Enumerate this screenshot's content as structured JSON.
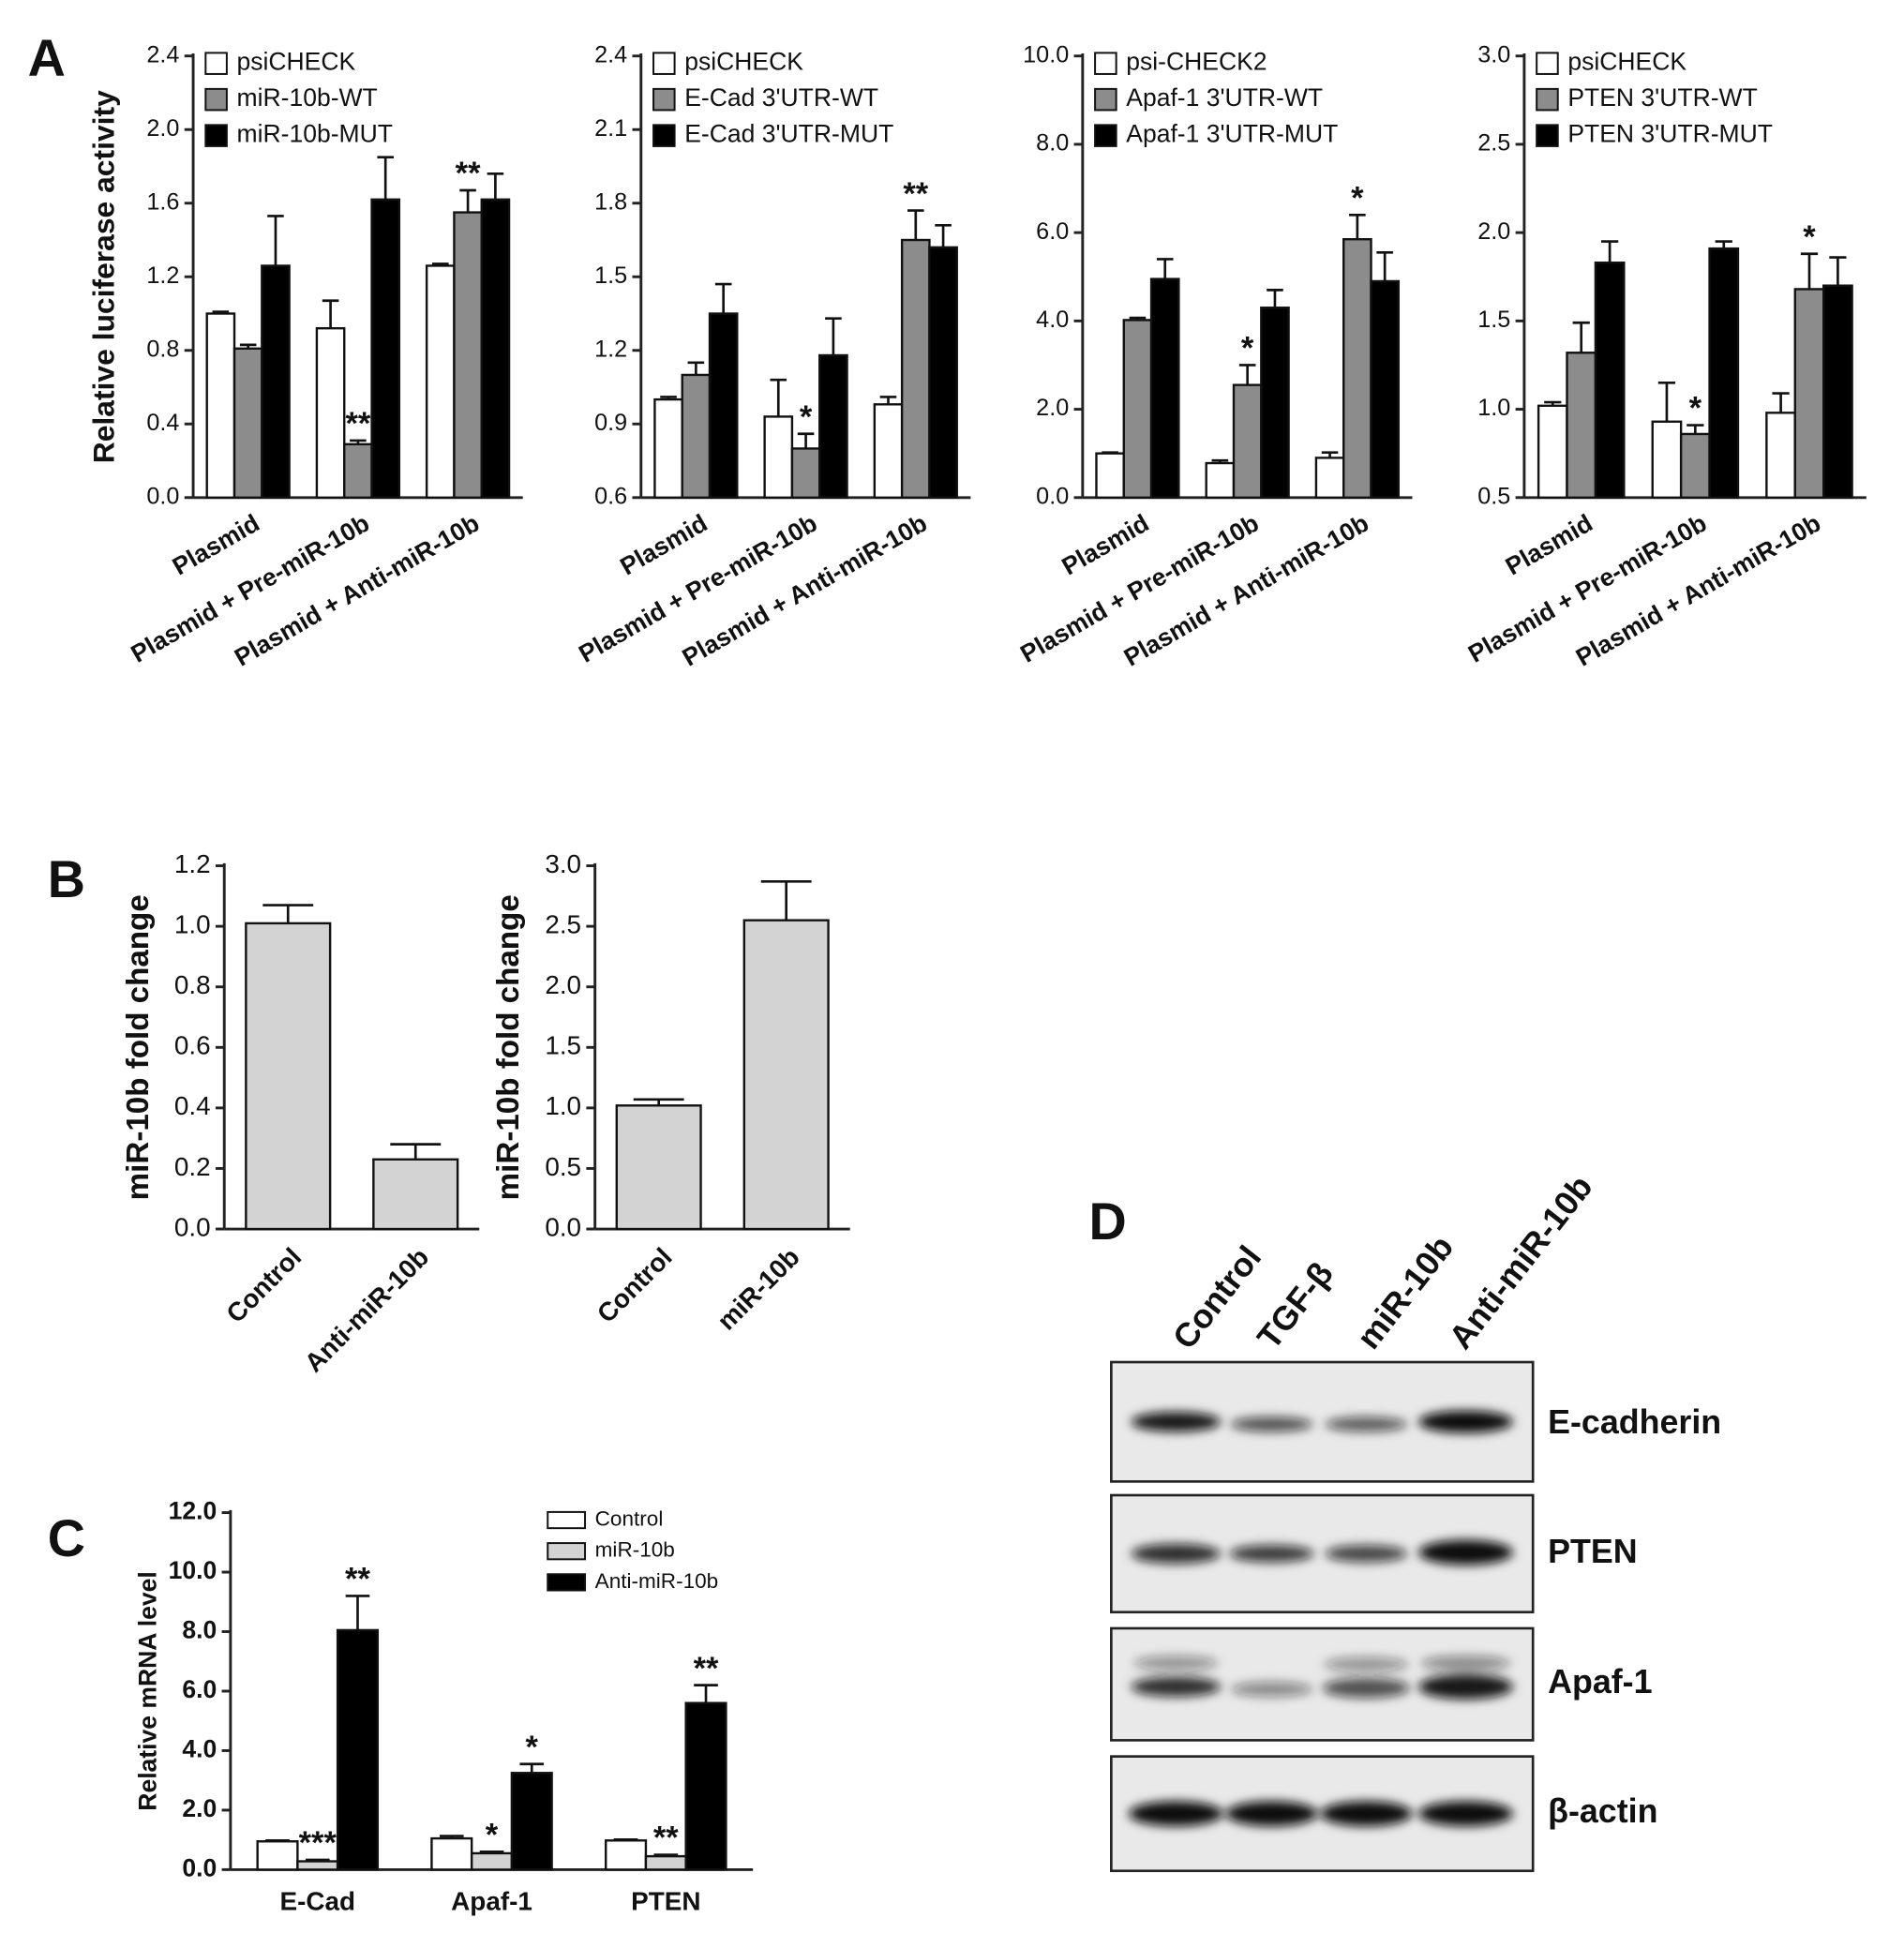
{
  "chart_data": [
    {
      "type": "bar",
      "panel_label": "A",
      "ylabel": "Relative luciferase activity",
      "categories": [
        "Plasmid",
        "Plasmid + Pre-miR-10b",
        "Plasmid + Anti-miR-10b"
      ],
      "series": [
        {
          "name": "psiCHECK",
          "color": "#ffffff",
          "values": [
            1.0,
            0.92,
            1.26
          ],
          "errors": [
            0.01,
            0.15,
            0.01
          ],
          "significance": [
            null,
            null,
            null
          ]
        },
        {
          "name": "miR-10b-WT",
          "color": "#8c8c8c",
          "values": [
            0.81,
            0.29,
            1.55
          ],
          "errors": [
            0.02,
            0.02,
            0.12
          ],
          "significance": [
            null,
            "**",
            "**"
          ]
        },
        {
          "name": "miR-10b-MUT",
          "color": "#000000",
          "values": [
            1.26,
            1.62,
            1.62
          ],
          "errors": [
            0.27,
            0.23,
            0.14
          ],
          "significance": [
            null,
            null,
            null
          ]
        }
      ],
      "ylim": [
        0,
        2.4
      ],
      "yticks": [
        {
          "value": 0,
          "label": "0.0"
        },
        0.4,
        0.8,
        1.2,
        1.6,
        {
          "value": 2,
          "label": "2.0"
        },
        2.4
      ],
      "legend": "upper left"
    },
    {
      "type": "bar",
      "categories": [
        "Plasmid",
        "Plasmid + Pre-miR-10b",
        "Plasmid + Anti-miR-10b"
      ],
      "series": [
        {
          "name": "psiCHECK",
          "color": "#ffffff",
          "values": [
            1.0,
            0.93,
            0.98
          ],
          "errors": [
            0.01,
            0.15,
            0.03
          ],
          "significance": [
            null,
            null,
            null
          ]
        },
        {
          "name": "E-Cad 3'UTR-WT",
          "color": "#8c8c8c",
          "values": [
            1.1,
            0.8,
            1.65
          ],
          "errors": [
            0.05,
            0.06,
            0.12
          ],
          "significance": [
            null,
            "*",
            "**"
          ]
        },
        {
          "name": "E-Cad 3'UTR-MUT",
          "color": "#000000",
          "values": [
            1.35,
            1.18,
            1.62
          ],
          "errors": [
            0.12,
            0.15,
            0.09
          ],
          "significance": [
            null,
            null,
            null
          ]
        }
      ],
      "ylim": [
        0.6,
        2.4
      ],
      "yticks": [
        0.6,
        0.9,
        1.2,
        1.5,
        1.8,
        2.1,
        2.4
      ],
      "legend": "upper left"
    },
    {
      "type": "bar",
      "categories": [
        "Plasmid",
        "Plasmid + Pre-miR-10b",
        "Plasmid + Anti-miR-10b"
      ],
      "series": [
        {
          "name": "psi-CHECK2",
          "color": "#ffffff",
          "values": [
            1.0,
            0.78,
            0.9
          ],
          "errors": [
            0.02,
            0.06,
            0.12
          ],
          "significance": [
            null,
            null,
            null
          ]
        },
        {
          "name": "Apaf-1 3'UTR-WT",
          "color": "#8c8c8c",
          "values": [
            4.02,
            2.55,
            5.85
          ],
          "errors": [
            0.05,
            0.45,
            0.55
          ],
          "significance": [
            null,
            "*",
            "*"
          ]
        },
        {
          "name": "Apaf-1 3'UTR-MUT",
          "color": "#000000",
          "values": [
            4.95,
            4.3,
            4.9
          ],
          "errors": [
            0.45,
            0.4,
            0.65
          ],
          "significance": [
            null,
            null,
            null
          ]
        }
      ],
      "ylim": [
        0,
        10
      ],
      "yticks": [
        {
          "value": 0,
          "label": "0.0"
        },
        {
          "value": 2,
          "label": "2.0"
        },
        {
          "value": 4,
          "label": "4.0"
        },
        {
          "value": 6,
          "label": "6.0"
        },
        {
          "value": 8,
          "label": "8.0"
        },
        {
          "value": 10,
          "label": "10.0"
        }
      ],
      "legend": "upper left"
    },
    {
      "type": "bar",
      "categories": [
        "Plasmid",
        "Plasmid + Pre-miR-10b",
        "Plasmid + Anti-miR-10b"
      ],
      "series": [
        {
          "name": "psiCHECK",
          "color": "#ffffff",
          "values": [
            1.02,
            0.93,
            0.98
          ],
          "errors": [
            0.02,
            0.22,
            0.11
          ],
          "significance": [
            null,
            null,
            null
          ]
        },
        {
          "name": "PTEN 3'UTR-WT",
          "color": "#8c8c8c",
          "values": [
            1.32,
            0.86,
            1.68
          ],
          "errors": [
            0.17,
            0.05,
            0.2
          ],
          "significance": [
            null,
            "*",
            "*"
          ]
        },
        {
          "name": "PTEN 3'UTR-MUT",
          "color": "#000000",
          "values": [
            1.83,
            1.91,
            1.7
          ],
          "errors": [
            0.12,
            0.04,
            0.16
          ],
          "significance": [
            null,
            null,
            null
          ]
        }
      ],
      "ylim": [
        0.5,
        3
      ],
      "yticks": [
        0.5,
        {
          "value": 1,
          "label": "1.0"
        },
        1.5,
        {
          "value": 2,
          "label": "2.0"
        },
        2.5,
        {
          "value": 3,
          "label": "3.0"
        }
      ],
      "legend": "upper left"
    },
    {
      "type": "bar",
      "panel_label": "B",
      "ylabel": "miR-10b fold change",
      "categories": [
        "Control",
        "Anti-miR-10b"
      ],
      "series": [
        {
          "color": "#d3d3d3",
          "values": [
            1.01,
            0.23
          ],
          "errors": [
            0.06,
            0.05
          ]
        }
      ],
      "ylim": [
        0,
        1.2
      ],
      "yticks": [
        {
          "value": 0,
          "label": "0.0"
        },
        0.2,
        0.4,
        0.6,
        0.8,
        {
          "value": 1,
          "label": "1.0"
        },
        1.2
      ]
    },
    {
      "type": "bar",
      "ylabel": "miR-10b fold change",
      "categories": [
        "Control",
        "miR-10b"
      ],
      "series": [
        {
          "color": "#d3d3d3",
          "values": [
            1.02,
            2.55
          ],
          "errors": [
            0.05,
            0.32
          ]
        }
      ],
      "ylim": [
        0,
        3
      ],
      "yticks": [
        {
          "value": 0,
          "label": "0.0"
        },
        0.5,
        {
          "value": 1,
          "label": "1.0"
        },
        1.5,
        {
          "value": 2,
          "label": "2.0"
        },
        2.5,
        {
          "value": 3,
          "label": "3.0"
        }
      ]
    },
    {
      "type": "bar",
      "panel_label": "C",
      "ylabel": "Relative mRNA level",
      "categories": [
        "E-Cad",
        "Apaf-1",
        "PTEN"
      ],
      "series": [
        {
          "name": "Control",
          "color": "#ffffff",
          "values": [
            0.95,
            1.05,
            0.98
          ],
          "errors": [
            0.03,
            0.08,
            0.03
          ],
          "significance": [
            null,
            null,
            null
          ]
        },
        {
          "name": "miR-10b",
          "color": "#d3d3d3",
          "values": [
            0.28,
            0.55,
            0.45
          ],
          "errors": [
            0.05,
            0.05,
            0.05
          ],
          "significance": [
            "***",
            "*",
            "**"
          ]
        },
        {
          "name": "Anti-miR-10b",
          "color": "#000000",
          "values": [
            8.05,
            3.25,
            5.6
          ],
          "errors": [
            1.15,
            0.3,
            0.6
          ],
          "significance": [
            "**",
            "*",
            "**"
          ]
        }
      ],
      "ylim": [
        0,
        12
      ],
      "yticks": [
        {
          "value": 0,
          "label": "0.0"
        },
        {
          "value": 2,
          "label": "2.0"
        },
        {
          "value": 4,
          "label": "4.0"
        },
        {
          "value": 6,
          "label": "6.0"
        },
        {
          "value": 8,
          "label": "8.0"
        },
        {
          "value": 10,
          "label": "10.0"
        },
        {
          "value": 12,
          "label": "12.0"
        }
      ],
      "legend": "upper right"
    }
  ],
  "panel_d": {
    "panel_label": "D",
    "columns": [
      "Control",
      "TGF-β",
      "miR-10b",
      "Anti-miR-10b"
    ],
    "rows": [
      "E-cadherin",
      "PTEN",
      "Apaf-1",
      "β-actin"
    ]
  }
}
